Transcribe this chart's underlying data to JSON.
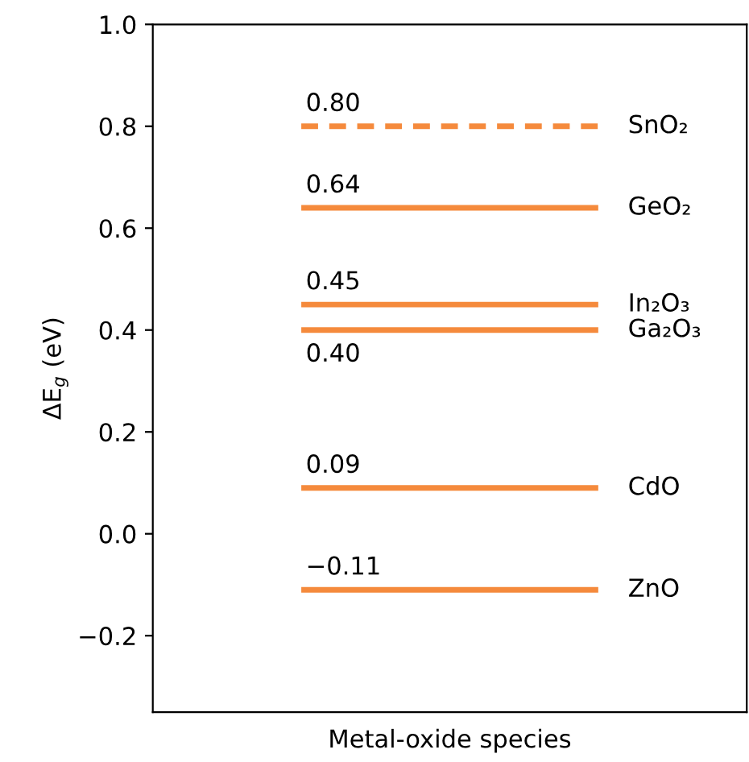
{
  "chart_data": {
    "type": "line",
    "xlabel": "Metal-oxide species",
    "ylabel": "ΔE$_{g}$ (eV)",
    "ylim": [
      -0.35,
      1.0
    ],
    "yticks": [
      {
        "value": -0.2,
        "label": "−0.2"
      },
      {
        "value": 0,
        "label": "0.0"
      },
      0.2,
      0.4,
      0.6,
      0.8,
      {
        "value": 1.0,
        "label": "1.0"
      }
    ],
    "categories": [
      null,
      null
    ],
    "marker": "none",
    "series": [
      {
        "name": "SnO₂",
        "color": "#f58a3c",
        "values": [
          0.8,
          0.8
        ],
        "line_style": "dashed",
        "value_labels": [
          "0.80",
          null
        ]
      },
      {
        "name": "GeO₂",
        "color": "#f58a3c",
        "values": [
          0.64,
          0.64
        ],
        "line_style": "solid",
        "value_labels": [
          "0.64",
          null
        ]
      },
      {
        "name": "In₂O₃",
        "color": "#f58a3c",
        "values": [
          0.45,
          0.45
        ],
        "line_style": "solid",
        "value_labels": [
          "0.45",
          null
        ]
      },
      {
        "name": "Ga₂O₃",
        "color": "#f58a3c",
        "values": [
          0.4,
          0.4
        ],
        "line_style": "solid",
        "value_labels": [
          "0.40",
          null
        ]
      },
      {
        "name": "CdO",
        "color": "#f58a3c",
        "values": [
          0.09,
          0.09
        ],
        "line_style": "solid",
        "value_labels": [
          "0.09",
          null
        ]
      },
      {
        "name": "ZnO",
        "color": "#f58a3c",
        "values": [
          -0.11,
          -0.11
        ],
        "line_style": "solid",
        "value_labels": [
          "−0.11",
          null
        ]
      }
    ]
  }
}
